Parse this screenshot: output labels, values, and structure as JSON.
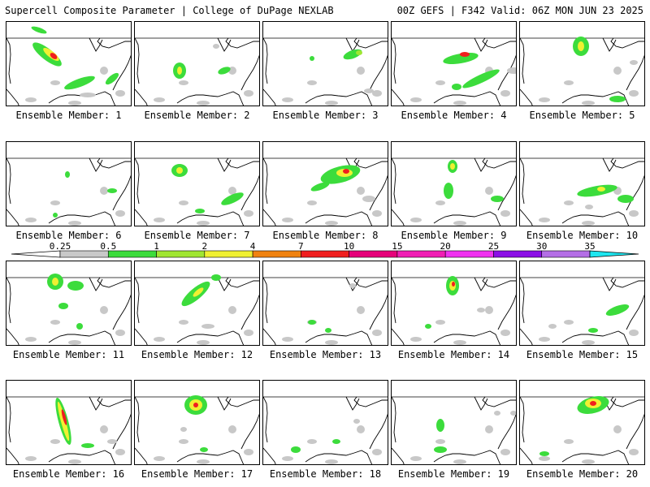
{
  "header": {
    "left": "Supercell Composite Parameter | College of DuPage NEXLAB",
    "right": "00Z GEFS | F342 Valid: 06Z MON JUN 23 2025"
  },
  "colorbar": {
    "levels": [
      {
        "label": "0.25",
        "color": "#c8c8c8"
      },
      {
        "label": "0.5",
        "color": "#3cdc3c"
      },
      {
        "label": "1",
        "color": "#a0e632"
      },
      {
        "label": "2",
        "color": "#f0f032"
      },
      {
        "label": "4",
        "color": "#f0820f"
      },
      {
        "label": "7",
        "color": "#f01e1e"
      },
      {
        "label": "10",
        "color": "#e6007a"
      },
      {
        "label": "15",
        "color": "#f01eb4"
      },
      {
        "label": "20",
        "color": "#f032f0"
      },
      {
        "label": "25",
        "color": "#8c0fe6"
      },
      {
        "label": "30",
        "color": "#b46ee6"
      },
      {
        "label": "35",
        "color": "#1ee6f0"
      }
    ]
  },
  "panels": [
    {
      "caption": "Ensemble Member: 1"
    },
    {
      "caption": "Ensemble Member: 2"
    },
    {
      "caption": "Ensemble Member: 3"
    },
    {
      "caption": "Ensemble Member: 4"
    },
    {
      "caption": "Ensemble Member: 5"
    },
    {
      "caption": "Ensemble Member: 6"
    },
    {
      "caption": "Ensemble Member: 7"
    },
    {
      "caption": "Ensemble Member: 8"
    },
    {
      "caption": "Ensemble Member: 9"
    },
    {
      "caption": "Ensemble Member: 10"
    },
    {
      "caption": "Ensemble Member: 11"
    },
    {
      "caption": "Ensemble Member: 12"
    },
    {
      "caption": "Ensemble Member: 13"
    },
    {
      "caption": "Ensemble Member: 14"
    },
    {
      "caption": "Ensemble Member: 15"
    },
    {
      "caption": "Ensemble Member: 16"
    },
    {
      "caption": "Ensemble Member: 17"
    },
    {
      "caption": "Ensemble Member: 18"
    },
    {
      "caption": "Ensemble Member: 19"
    },
    {
      "caption": "Ensemble Member: 20"
    }
  ]
}
